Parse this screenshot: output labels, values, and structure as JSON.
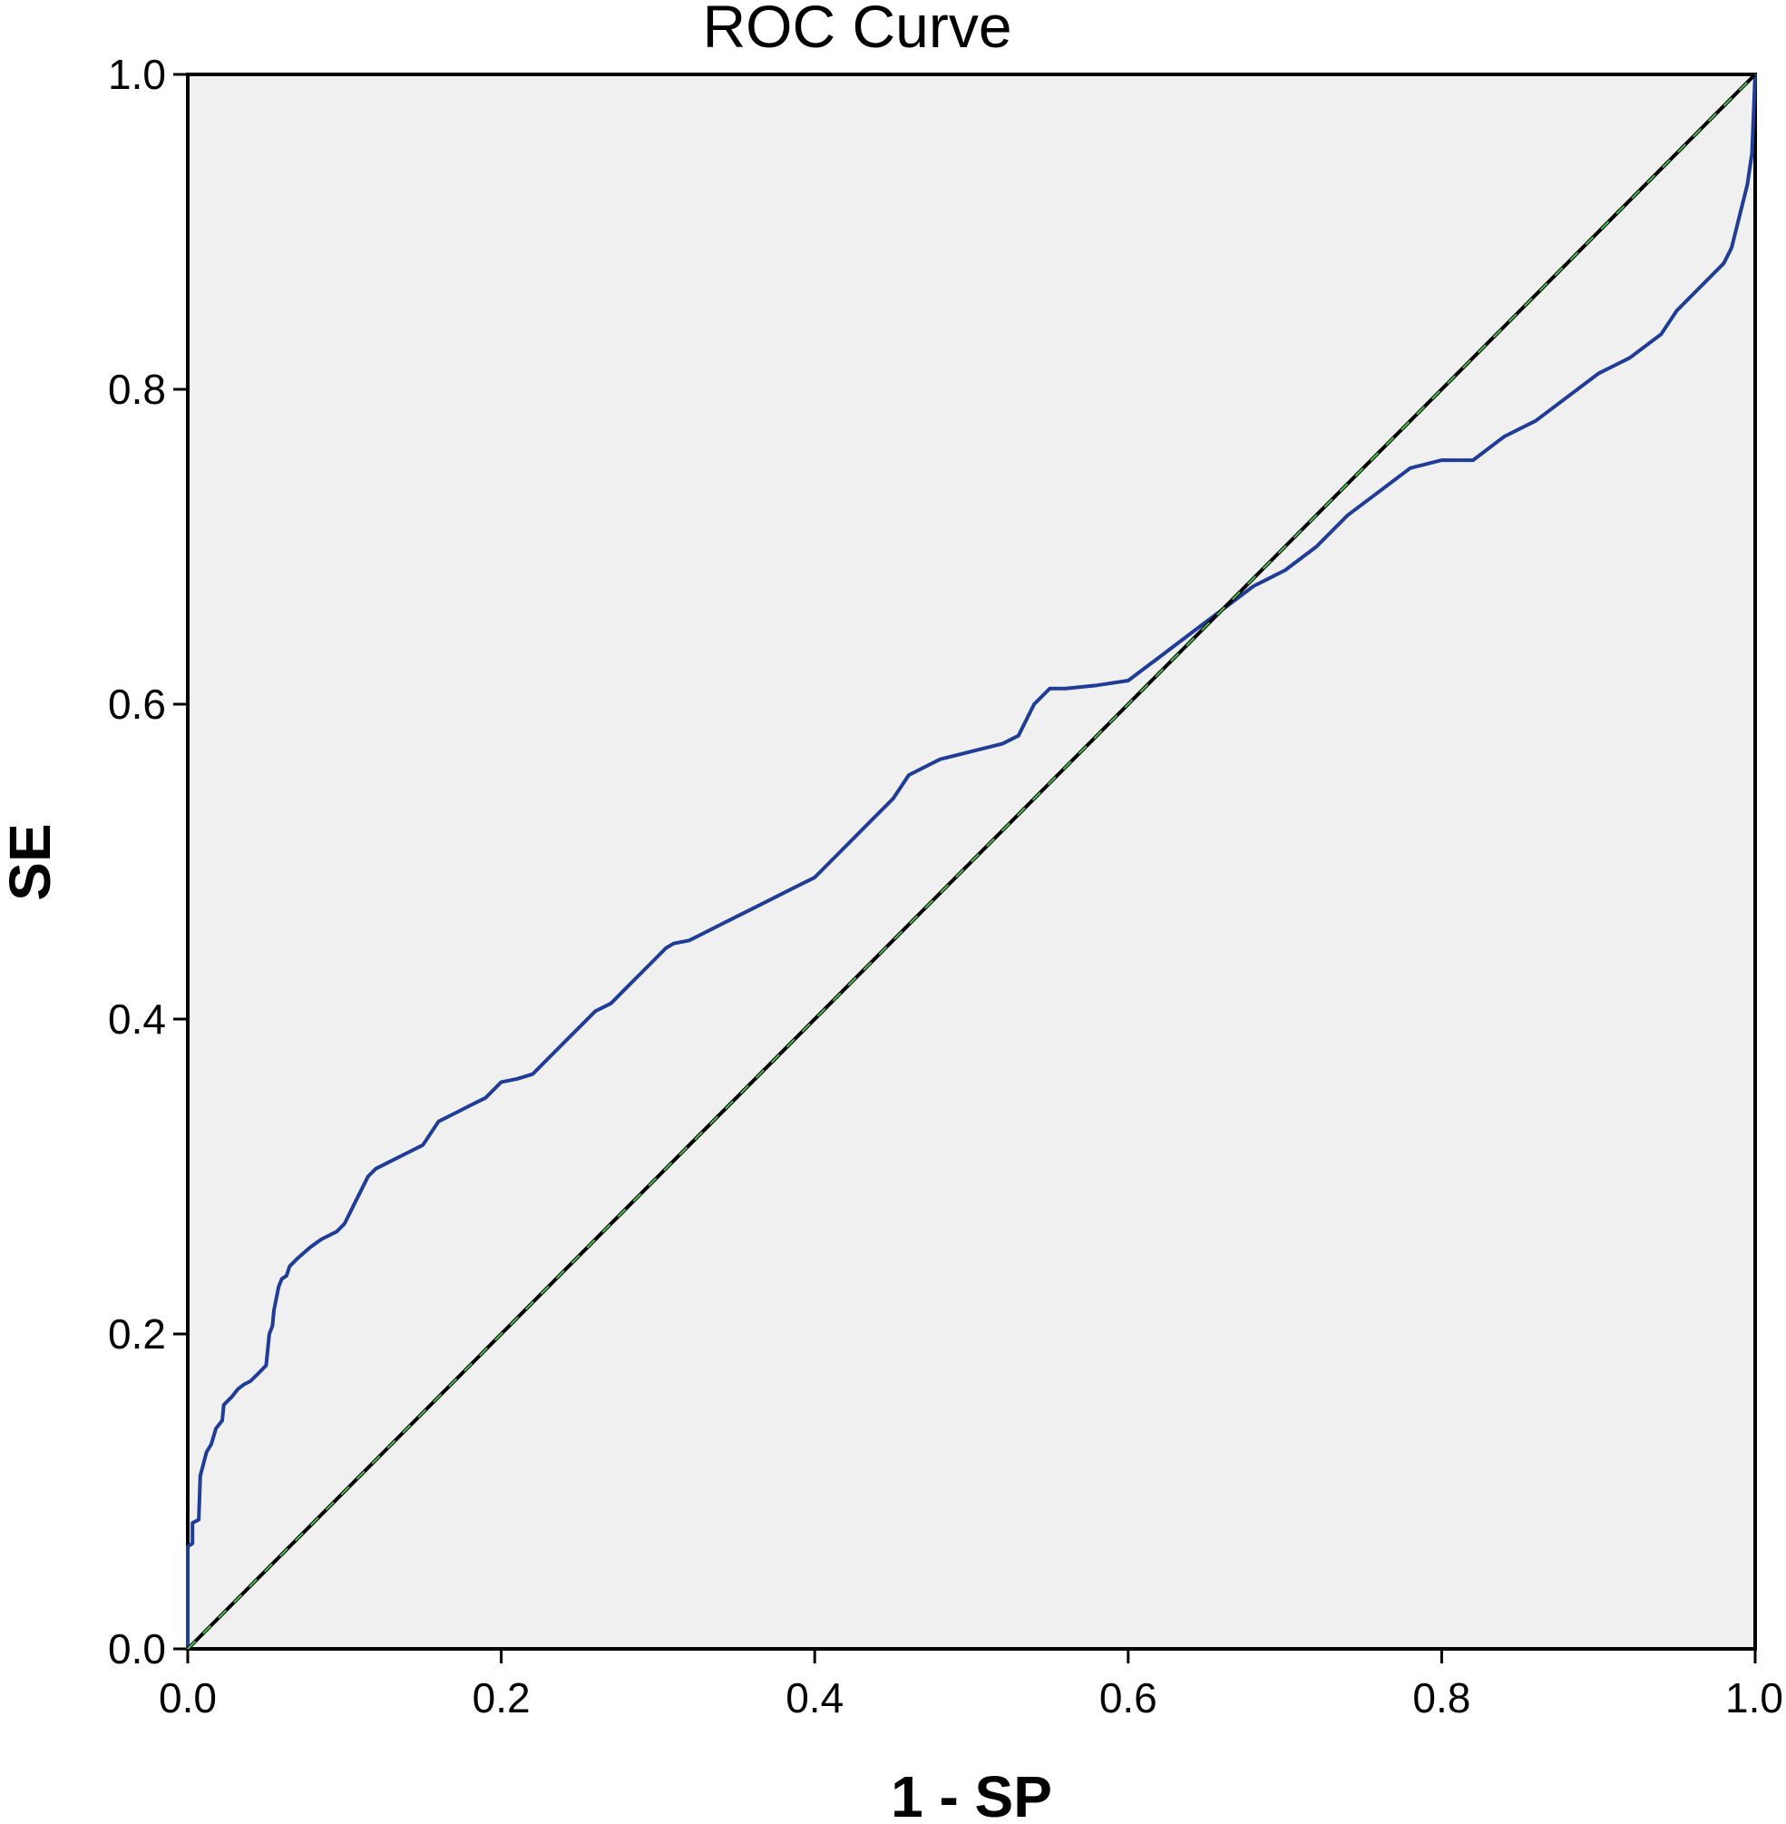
{
  "chart_data": {
    "type": "line",
    "title": "ROC Curve",
    "xlabel": "1 - SP",
    "ylabel": "SE",
    "xlim": [
      0,
      1
    ],
    "ylim": [
      0,
      1
    ],
    "x_ticks": [
      "0.0",
      "0.2",
      "0.4",
      "0.6",
      "0.8",
      "1.0"
    ],
    "y_ticks": [
      "0.0",
      "0.2",
      "0.4",
      "0.6",
      "0.8",
      "1.0"
    ],
    "grid": false,
    "legend": "none",
    "plot_background": "#f0f0f0",
    "series": [
      {
        "role": "roc-curve",
        "color": "#1f3c99",
        "x": [
          0.0,
          0.0,
          0.003,
          0.003,
          0.007,
          0.008,
          0.012,
          0.015,
          0.018,
          0.022,
          0.023,
          0.028,
          0.032,
          0.036,
          0.04,
          0.045,
          0.05,
          0.052,
          0.054,
          0.055,
          0.058,
          0.06,
          0.063,
          0.065,
          0.07,
          0.078,
          0.085,
          0.095,
          0.1,
          0.105,
          0.11,
          0.115,
          0.12,
          0.13,
          0.14,
          0.15,
          0.16,
          0.17,
          0.18,
          0.19,
          0.2,
          0.21,
          0.22,
          0.23,
          0.24,
          0.25,
          0.26,
          0.27,
          0.28,
          0.29,
          0.3,
          0.305,
          0.31,
          0.32,
          0.33,
          0.34,
          0.35,
          0.36,
          0.37,
          0.38,
          0.39,
          0.4,
          0.41,
          0.42,
          0.43,
          0.44,
          0.45,
          0.46,
          0.47,
          0.48,
          0.5,
          0.52,
          0.53,
          0.54,
          0.55,
          0.56,
          0.58,
          0.6,
          0.62,
          0.64,
          0.66,
          0.68,
          0.7,
          0.72,
          0.74,
          0.76,
          0.78,
          0.8,
          0.82,
          0.84,
          0.86,
          0.88,
          0.9,
          0.92,
          0.94,
          0.95,
          0.96,
          0.97,
          0.98,
          0.985,
          0.99,
          0.995,
          0.998,
          1.0
        ],
        "y": [
          0.0,
          0.065,
          0.067,
          0.08,
          0.082,
          0.11,
          0.125,
          0.13,
          0.14,
          0.145,
          0.155,
          0.16,
          0.165,
          0.168,
          0.17,
          0.175,
          0.18,
          0.2,
          0.205,
          0.215,
          0.23,
          0.235,
          0.237,
          0.243,
          0.248,
          0.255,
          0.26,
          0.265,
          0.27,
          0.28,
          0.29,
          0.3,
          0.305,
          0.31,
          0.315,
          0.32,
          0.335,
          0.34,
          0.345,
          0.35,
          0.36,
          0.362,
          0.365,
          0.375,
          0.385,
          0.395,
          0.405,
          0.41,
          0.42,
          0.43,
          0.44,
          0.445,
          0.448,
          0.45,
          0.455,
          0.46,
          0.465,
          0.47,
          0.475,
          0.48,
          0.485,
          0.49,
          0.5,
          0.51,
          0.52,
          0.53,
          0.54,
          0.555,
          0.56,
          0.565,
          0.57,
          0.575,
          0.58,
          0.6,
          0.61,
          0.61,
          0.612,
          0.615,
          0.63,
          0.645,
          0.66,
          0.675,
          0.685,
          0.7,
          0.72,
          0.735,
          0.75,
          0.755,
          0.755,
          0.77,
          0.78,
          0.795,
          0.81,
          0.82,
          0.835,
          0.85,
          0.86,
          0.87,
          0.88,
          0.89,
          0.91,
          0.93,
          0.95,
          1.0
        ]
      },
      {
        "role": "reference-line",
        "color": "#000000",
        "x": [
          0,
          1
        ],
        "y": [
          0,
          1
        ]
      }
    ]
  }
}
